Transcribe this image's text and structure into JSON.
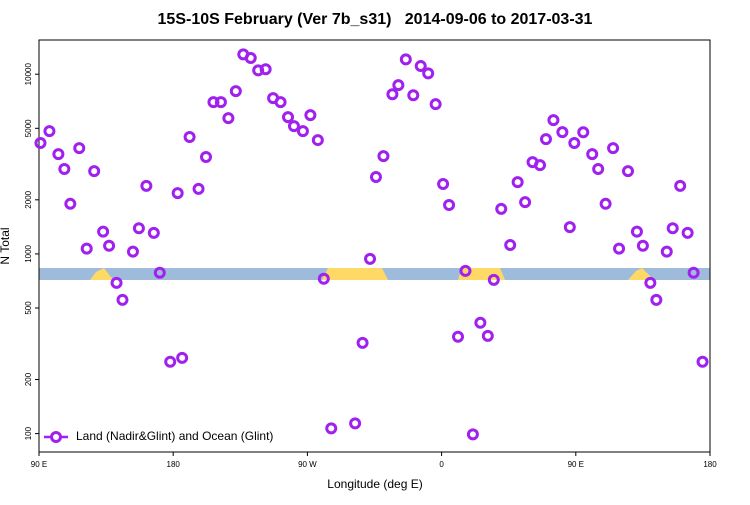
{
  "chart_data": {
    "type": "scatter",
    "title": "15S-10S February (Ver 7b_s31)   2014-09-06 to 2017-03-31",
    "x_label": "Longitude (deg E)",
    "y_label": "N Total",
    "log_y": true,
    "xlim": [
      90,
      540
    ],
    "ylim": [
      79,
      15500
    ],
    "xticks": [
      {
        "value": 90,
        "label": "90 E"
      },
      {
        "value": 180,
        "label": "180"
      },
      {
        "value": 270,
        "label": "90 W"
      },
      {
        "value": 360,
        "label": "0"
      },
      {
        "value": 450,
        "label": "90 E"
      },
      {
        "value": 540,
        "label": "180"
      }
    ],
    "yticks": [
      100,
      200,
      500,
      1000,
      2000,
      5000,
      10000
    ],
    "legend": "bottom-left",
    "series": [
      {
        "name": "Land (Nadir&Glint) and Ocean (Glint)",
        "color": "#a020f0",
        "x": [
          91,
          97,
          103,
          107,
          111,
          117,
          122,
          127,
          133,
          137,
          142,
          146,
          153,
          157,
          162,
          167,
          171,
          178,
          183,
          186,
          191,
          197,
          202,
          207,
          212,
          217,
          222,
          227,
          232,
          237,
          242,
          247,
          252,
          257,
          261,
          267,
          272,
          277,
          281,
          286,
          302,
          307,
          312,
          316,
          321,
          327,
          331,
          336,
          341,
          346,
          351,
          356,
          361,
          365,
          371,
          376,
          381,
          386,
          391,
          395,
          400,
          406,
          411,
          416,
          421,
          426,
          430,
          435,
          441,
          446,
          449,
          455,
          461,
          465,
          470,
          475,
          479,
          485,
          491,
          495,
          500,
          504,
          511,
          515,
          520,
          525,
          529,
          535
        ],
        "values": [
          4140,
          4820,
          3590,
          2970,
          1900,
          3880,
          1070,
          2890,
          1330,
          1110,
          690,
          555,
          1030,
          1390,
          2390,
          1310,
          785,
          251,
          2180,
          264,
          4470,
          2300,
          3460,
          6990,
          6990,
          5700,
          8050,
          12900,
          12300,
          10500,
          10660,
          7360,
          6990,
          5770,
          5140,
          4820,
          5920,
          4300,
          727,
          107,
          114,
          320,
          938,
          2680,
          3500,
          7740,
          8690,
          12100,
          7640,
          11100,
          10100,
          6810,
          2450,
          1870,
          346,
          805,
          99,
          414,
          350,
          717,
          1780,
          1120,
          2510,
          1940,
          3240,
          3120,
          4350,
          5550,
          4760,
          1410,
          4140,
          4750,
          3590,
          2970,
          1900,
          3880,
          1070,
          2890,
          1330,
          1110,
          690,
          555,
          1030,
          1390,
          2390,
          1310,
          785,
          251
        ]
      }
    ]
  }
}
